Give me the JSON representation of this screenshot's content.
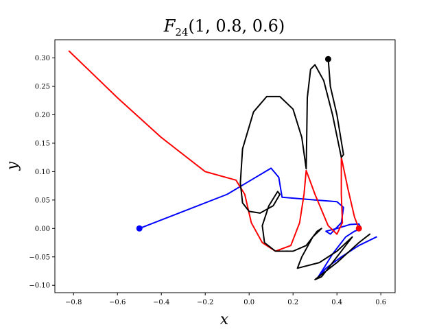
{
  "chart_data": {
    "type": "line",
    "title": "F",
    "title_subscript": "24",
    "title_args": "(1, 0.8, 0.6)",
    "xlabel": "x",
    "ylabel": "y",
    "xlim": [
      -0.885,
      0.665
    ],
    "ylim": [
      -0.113,
      0.332
    ],
    "xticks": [
      -0.8,
      -0.6,
      -0.4,
      -0.2,
      0.0,
      0.2,
      0.4,
      0.6
    ],
    "xtick_labels": [
      "−0.8",
      "−0.6",
      "−0.4",
      "−0.2",
      "0.0",
      "0.2",
      "0.4",
      "0.6"
    ],
    "yticks": [
      -0.1,
      -0.05,
      0.0,
      0.05,
      0.1,
      0.15,
      0.2,
      0.25,
      0.3
    ],
    "ytick_labels": [
      "−0.10",
      "−0.05",
      "0.00",
      "0.05",
      "0.10",
      "0.15",
      "0.20",
      "0.25",
      "0.30"
    ],
    "grid": false,
    "series": [
      {
        "color": "#0000ff",
        "points": [
          [
            -0.5,
            0.0
          ],
          [
            -0.3,
            0.03
          ],
          [
            -0.1,
            0.06
          ],
          [
            0.03,
            0.09
          ],
          [
            0.1,
            0.106
          ],
          [
            0.135,
            0.09
          ],
          [
            0.15,
            0.055
          ],
          [
            0.3,
            0.05
          ],
          [
            0.4,
            0.047
          ],
          [
            0.43,
            0.037
          ],
          [
            0.42,
            0.01
          ],
          [
            0.37,
            -0.01
          ],
          [
            0.35,
            -0.005
          ],
          [
            0.4,
            0.0
          ],
          [
            0.46,
            0.007
          ],
          [
            0.5,
            0.008
          ],
          [
            0.51,
            0.0
          ],
          [
            0.48,
            -0.005
          ],
          [
            0.44,
            -0.015
          ],
          [
            0.38,
            -0.045
          ],
          [
            0.34,
            -0.07
          ],
          [
            0.31,
            -0.088
          ],
          [
            0.35,
            -0.07
          ],
          [
            0.42,
            -0.05
          ],
          [
            0.5,
            -0.03
          ],
          [
            0.58,
            -0.015
          ]
        ],
        "marker": [
          -0.5,
          0.0
        ]
      },
      {
        "color": "#ff0000",
        "points": [
          [
            -0.82,
            0.312
          ],
          [
            -0.6,
            0.23
          ],
          [
            -0.4,
            0.16
          ],
          [
            -0.2,
            0.1
          ],
          [
            -0.06,
            0.085
          ],
          [
            -0.02,
            0.06
          ],
          [
            0.01,
            0.01
          ],
          [
            0.06,
            -0.025
          ],
          [
            0.12,
            -0.04
          ],
          [
            0.19,
            -0.03
          ],
          [
            0.23,
            0.01
          ],
          [
            0.25,
            0.06
          ],
          [
            0.26,
            0.102
          ],
          [
            0.3,
            0.06
          ],
          [
            0.36,
            0.005
          ],
          [
            0.4,
            -0.01
          ],
          [
            0.425,
            0.01
          ],
          [
            0.42,
            0.06
          ],
          [
            0.42,
            0.125
          ],
          [
            0.45,
            0.07
          ],
          [
            0.48,
            0.02
          ],
          [
            0.5,
            0.0
          ]
        ],
        "marker": [
          0.5,
          0.0
        ]
      },
      {
        "color": "#000000",
        "points": [
          [
            0.36,
            0.3
          ],
          [
            0.37,
            0.25
          ],
          [
            0.4,
            0.2
          ],
          [
            0.43,
            0.13
          ],
          [
            0.42,
            0.125
          ],
          [
            0.38,
            0.2
          ],
          [
            0.34,
            0.26
          ],
          [
            0.3,
            0.288
          ],
          [
            0.28,
            0.28
          ],
          [
            0.265,
            0.23
          ],
          [
            0.262,
            0.15
          ],
          [
            0.26,
            0.105
          ],
          [
            0.24,
            0.16
          ],
          [
            0.2,
            0.21
          ],
          [
            0.14,
            0.232
          ],
          [
            0.08,
            0.232
          ],
          [
            0.02,
            0.205
          ],
          [
            -0.03,
            0.14
          ],
          [
            -0.04,
            0.08
          ],
          [
            -0.03,
            0.045
          ],
          [
            0.0,
            0.03
          ],
          [
            0.05,
            0.027
          ],
          [
            0.11,
            0.04
          ],
          [
            0.14,
            0.06
          ],
          [
            0.13,
            0.065
          ],
          [
            0.09,
            0.04
          ],
          [
            0.06,
            0.005
          ],
          [
            0.07,
            -0.025
          ],
          [
            0.12,
            -0.04
          ],
          [
            0.2,
            -0.04
          ],
          [
            0.26,
            -0.03
          ],
          [
            0.31,
            -0.005
          ],
          [
            0.33,
            0.0
          ],
          [
            0.29,
            -0.015
          ],
          [
            0.24,
            -0.05
          ],
          [
            0.22,
            -0.07
          ],
          [
            0.24,
            -0.068
          ],
          [
            0.32,
            -0.06
          ],
          [
            0.4,
            -0.04
          ],
          [
            0.47,
            -0.015
          ],
          [
            0.43,
            -0.035
          ],
          [
            0.38,
            -0.06
          ],
          [
            0.33,
            -0.085
          ],
          [
            0.3,
            -0.09
          ],
          [
            0.4,
            -0.06
          ],
          [
            0.5,
            -0.025
          ],
          [
            0.55,
            -0.01
          ]
        ],
        "marker": [
          0.36,
          0.298
        ]
      }
    ]
  }
}
